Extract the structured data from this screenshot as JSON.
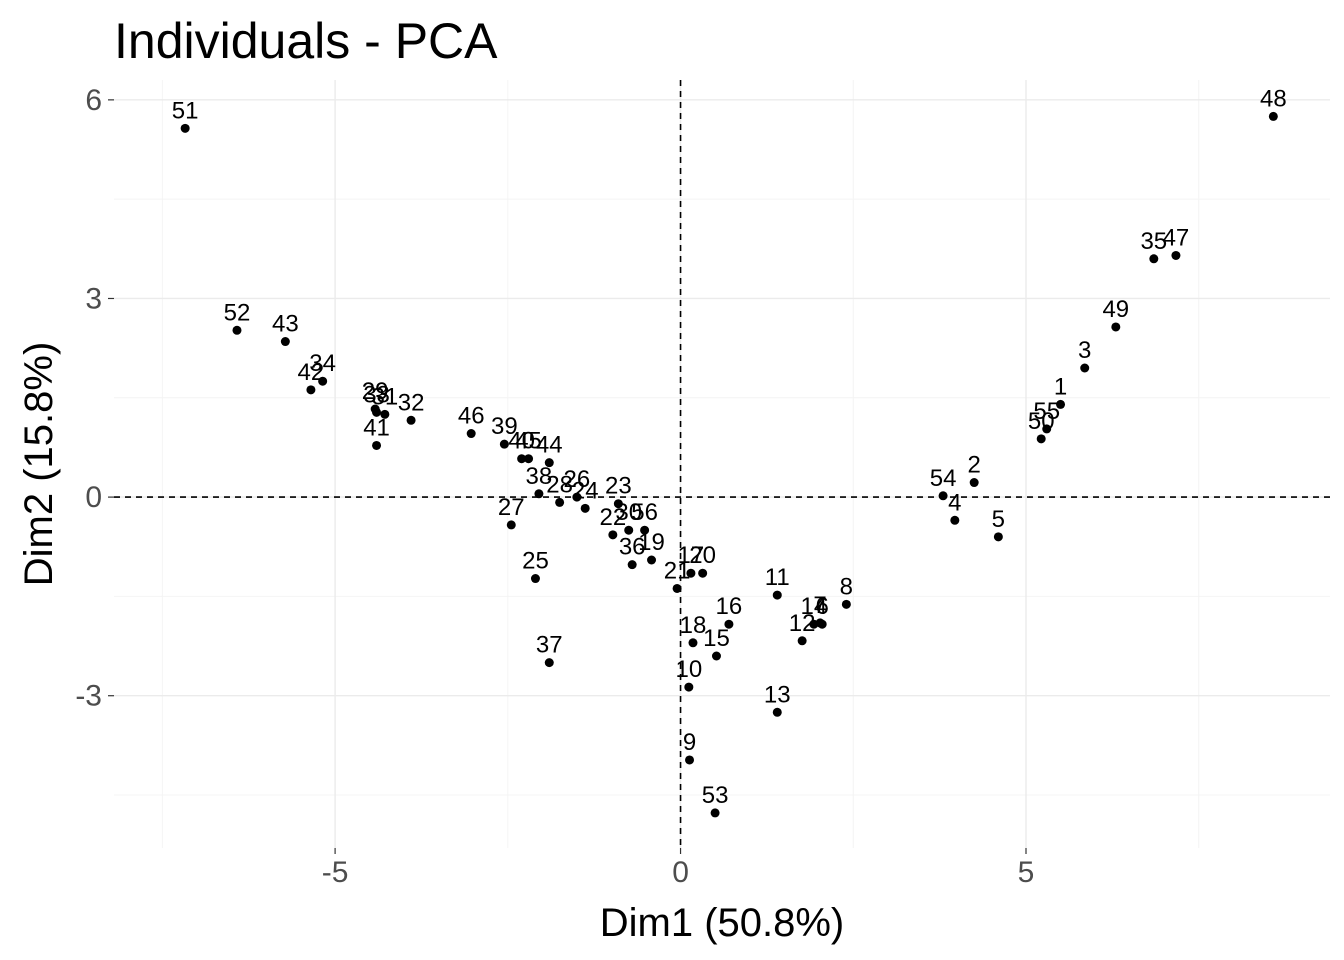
{
  "chart_data": {
    "type": "scatter",
    "title": "Individuals - PCA",
    "xlabel": "Dim1 (50.8%)",
    "ylabel": "Dim2 (15.8%)",
    "xlim": [
      -8.2,
      9.4
    ],
    "ylim": [
      -5.3,
      6.3
    ],
    "xticks": [
      -5,
      0,
      5
    ],
    "xtick_labels": [
      "-5",
      "0",
      "5"
    ],
    "yticks": [
      -3,
      0,
      3,
      6
    ],
    "ytick_labels": [
      "-3",
      "0",
      "3",
      "6"
    ],
    "grid": true,
    "reference_lines": {
      "x": 0,
      "y": 0,
      "style": "dashed"
    },
    "point_color": "#000000",
    "points": [
      {
        "label": "1",
        "x": 5.5,
        "y": 1.4
      },
      {
        "label": "2",
        "x": 4.25,
        "y": 0.22
      },
      {
        "label": "3",
        "x": 5.85,
        "y": 1.95
      },
      {
        "label": "4",
        "x": 3.97,
        "y": -0.35
      },
      {
        "label": "5",
        "x": 4.6,
        "y": -0.6
      },
      {
        "label": "6",
        "x": 2.05,
        "y": -1.92
      },
      {
        "label": "7",
        "x": 2.02,
        "y": -1.9
      },
      {
        "label": "8",
        "x": 2.4,
        "y": -1.62
      },
      {
        "label": "9",
        "x": 0.13,
        "y": -3.97
      },
      {
        "label": "10",
        "x": 0.12,
        "y": -2.87
      },
      {
        "label": "11",
        "x": 1.4,
        "y": -1.48
      },
      {
        "label": "12",
        "x": 1.76,
        "y": -2.17
      },
      {
        "label": "13",
        "x": 1.4,
        "y": -3.25
      },
      {
        "label": "14",
        "x": 1.93,
        "y": -1.92
      },
      {
        "label": "15",
        "x": 0.52,
        "y": -2.4
      },
      {
        "label": "16",
        "x": 0.7,
        "y": -1.92
      },
      {
        "label": "17",
        "x": 0.15,
        "y": -1.15
      },
      {
        "label": "18",
        "x": 0.18,
        "y": -2.2
      },
      {
        "label": "19",
        "x": -0.42,
        "y": -0.95
      },
      {
        "label": "20",
        "x": 0.32,
        "y": -1.15
      },
      {
        "label": "21",
        "x": -0.05,
        "y": -1.38
      },
      {
        "label": "22",
        "x": -0.98,
        "y": -0.57
      },
      {
        "label": "23",
        "x": -0.9,
        "y": -0.1
      },
      {
        "label": "24",
        "x": -1.38,
        "y": -0.17
      },
      {
        "label": "25",
        "x": -2.1,
        "y": -1.23
      },
      {
        "label": "26",
        "x": -1.5,
        "y": 0.0
      },
      {
        "label": "27",
        "x": -2.45,
        "y": -0.42
      },
      {
        "label": "28",
        "x": -1.75,
        "y": -0.08
      },
      {
        "label": "29",
        "x": -4.42,
        "y": 1.33
      },
      {
        "label": "30",
        "x": -0.75,
        "y": -0.5
      },
      {
        "label": "31",
        "x": -4.28,
        "y": 1.25
      },
      {
        "label": "32",
        "x": -3.9,
        "y": 1.16
      },
      {
        "label": "33",
        "x": -4.4,
        "y": 1.28
      },
      {
        "label": "34",
        "x": -5.18,
        "y": 1.75
      },
      {
        "label": "35",
        "x": 6.85,
        "y": 3.6
      },
      {
        "label": "36",
        "x": -0.7,
        "y": -1.02
      },
      {
        "label": "37",
        "x": -1.9,
        "y": -2.5
      },
      {
        "label": "38",
        "x": -2.05,
        "y": 0.05
      },
      {
        "label": "39",
        "x": -2.55,
        "y": 0.8
      },
      {
        "label": "40",
        "x": -2.3,
        "y": 0.58
      },
      {
        "label": "41",
        "x": -4.4,
        "y": 0.78
      },
      {
        "label": "42",
        "x": -5.35,
        "y": 1.62
      },
      {
        "label": "43",
        "x": -5.72,
        "y": 2.35
      },
      {
        "label": "44",
        "x": -1.9,
        "y": 0.52
      },
      {
        "label": "45",
        "x": -2.2,
        "y": 0.58
      },
      {
        "label": "46",
        "x": -3.03,
        "y": 0.96
      },
      {
        "label": "47",
        "x": 7.17,
        "y": 3.65
      },
      {
        "label": "48",
        "x": 8.58,
        "y": 5.75
      },
      {
        "label": "49",
        "x": 6.3,
        "y": 2.57
      },
      {
        "label": "50",
        "x": 5.22,
        "y": 0.88
      },
      {
        "label": "51",
        "x": -7.17,
        "y": 5.57
      },
      {
        "label": "52",
        "x": -6.42,
        "y": 2.52
      },
      {
        "label": "53",
        "x": 0.5,
        "y": -4.77
      },
      {
        "label": "54",
        "x": 3.8,
        "y": 0.02
      },
      {
        "label": "55",
        "x": 5.3,
        "y": 1.03
      },
      {
        "label": "56",
        "x": -0.52,
        "y": -0.5
      }
    ]
  }
}
